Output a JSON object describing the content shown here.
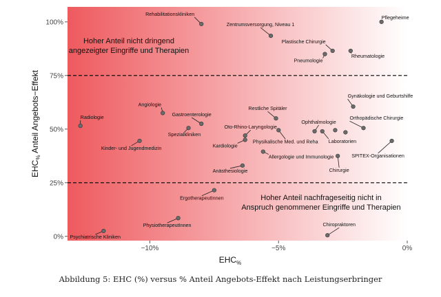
{
  "chart_data": {
    "type": "scatter",
    "xlabel": "EHC%",
    "ylabel": "EHC% Anteil Angebots-Effekt",
    "xlim": [
      -13.2,
      0
    ],
    "ylim": [
      -2,
      107
    ],
    "xticks": [
      -10,
      -5,
      0
    ],
    "xtick_labels": [
      "−10%",
      "−5%",
      "0%"
    ],
    "yticks": [
      0,
      25,
      50,
      75,
      100
    ],
    "ytick_labels": [
      "0%",
      "25%",
      "50%",
      "75%",
      "100%"
    ],
    "hlines": [
      25,
      75
    ],
    "background": "gradient from red (left) to white (right)",
    "grid": false,
    "points": [
      {
        "label": "Pflegeheime",
        "x": -1.0,
        "y": 100.0
      },
      {
        "label": "Rehabilitationskliniken",
        "x": -8.0,
        "y": 99.0
      },
      {
        "label": "Zentrumsversorgung, Niveau 1",
        "x": -5.3,
        "y": 93.5
      },
      {
        "label": "Plastische Chirurgie",
        "x": -2.9,
        "y": 86.5
      },
      {
        "label": "Pneumologie",
        "x": -3.2,
        "y": 85.0
      },
      {
        "label": "Rheumatologie",
        "x": -2.2,
        "y": 86.5
      },
      {
        "label": "Gynäkologie und Geburtshilfe",
        "x": -2.1,
        "y": 60.5
      },
      {
        "label": "Radiologie",
        "x": -12.7,
        "y": 51.5
      },
      {
        "label": "Angiologie",
        "x": -9.5,
        "y": 57.5
      },
      {
        "label": "Gastroenterologie",
        "x": -8.0,
        "y": 52.5
      },
      {
        "label": "Restliche Spitäler",
        "x": -5.1,
        "y": 55.0
      },
      {
        "label": "Ophthalmologie",
        "x": -3.6,
        "y": 49.0
      },
      {
        "label": "Orthopädische Chirurgie",
        "x": -1.7,
        "y": 50.5
      },
      {
        "label": "Spezialkliniken",
        "x": -8.5,
        "y": 50.5
      },
      {
        "label": "Oto-Rhino-Laryngologie",
        "x": -6.3,
        "y": 47.0
      },
      {
        "label": "Physikalische Med. und Reha",
        "x": -5.0,
        "y": 49.5
      },
      {
        "label": "Laboratorien",
        "x": -3.3,
        "y": 49.0
      },
      {
        "label": "",
        "x": -2.8,
        "y": 49.5
      },
      {
        "label": "",
        "x": -2.4,
        "y": 48.5
      },
      {
        "label": "Kardiologie",
        "x": -6.3,
        "y": 45.0
      },
      {
        "label": "Allergologie und Immunologie",
        "x": -5.6,
        "y": 39.5
      },
      {
        "label": "Kinder- und Jugendmedizin",
        "x": -10.4,
        "y": 44.5
      },
      {
        "label": "SPITEX-Organisationen",
        "x": -0.6,
        "y": 44.5
      },
      {
        "label": "Chirurgie",
        "x": -2.7,
        "y": 37.5
      },
      {
        "label": "Anästhesiologie",
        "x": -6.4,
        "y": 33.0
      },
      {
        "label": "ErgotherapeutInnen",
        "x": -7.5,
        "y": 21.5
      },
      {
        "label": "PhysiotherapeutInnen",
        "x": -8.9,
        "y": 8.5
      },
      {
        "label": "Psychiatrische Kliniken",
        "x": -11.8,
        "y": 2.5
      },
      {
        "label": "Chiropraktoren",
        "x": -3.1,
        "y": 0.5
      }
    ],
    "annotations": {
      "top_left": [
        "Hoher Anteil nicht dringend",
        "angezeigter Eingriffe und Therapien"
      ],
      "bottom_right": [
        "Hoher Anteil nachfrageseitig nicht in",
        "Anspruch genommener Eingriffe und Therapien"
      ]
    }
  },
  "caption": "Abbildung 5: EHC (%) versus % Anteil Angebots-Effekt nach Leistungserbringer",
  "colors": {
    "gradient_left": "#ee5a5e",
    "gradient_right": "#ffffff",
    "point_fill": "#6b6b6b",
    "point_stroke": "#333333"
  }
}
